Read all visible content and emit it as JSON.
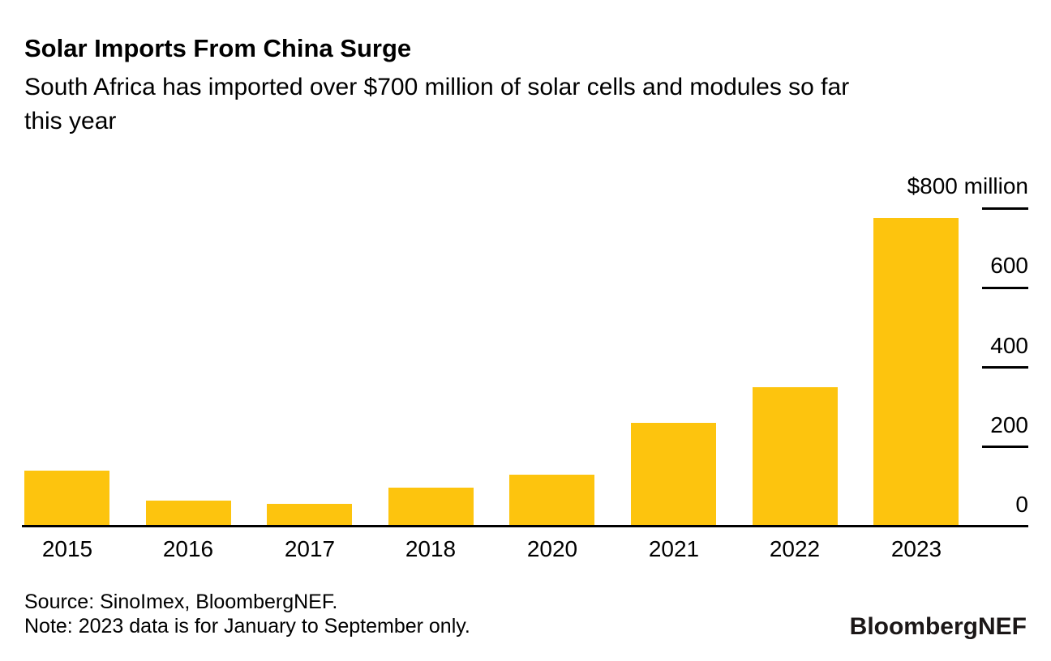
{
  "header": {
    "title": "Solar Imports From China Surge",
    "subtitle_line1": "South Africa has imported over $700 million of solar cells and modules so far",
    "subtitle_line2": "this year"
  },
  "chart_data": {
    "type": "bar",
    "title": "Solar Imports From China Surge",
    "subtitle": "South Africa has imported over $700 million of solar cells and modules so far this year",
    "categories": [
      "2015",
      "2016",
      "2017",
      "2018",
      "2020",
      "2021",
      "2022",
      "2023"
    ],
    "values": [
      140,
      65,
      58,
      97,
      130,
      260,
      350,
      775
    ],
    "unit": "US$ million",
    "ylim": [
      0,
      800
    ],
    "yticks": [
      {
        "label": "$800 million",
        "value": 800
      },
      {
        "label": "600",
        "value": 600
      },
      {
        "label": "400",
        "value": 400
      },
      {
        "label": "200",
        "value": 200
      },
      {
        "label": "0",
        "value": 0
      }
    ],
    "bar_color": "#FDC40E",
    "axis_color": "#000000",
    "grid": "off",
    "legend": "none",
    "y_axis_position": "right"
  },
  "footer": {
    "source": "Source: SinoImex, BloombergNEF.",
    "note": "Note: 2023 data is for January to September only.",
    "logo": "BloombergNEF"
  }
}
